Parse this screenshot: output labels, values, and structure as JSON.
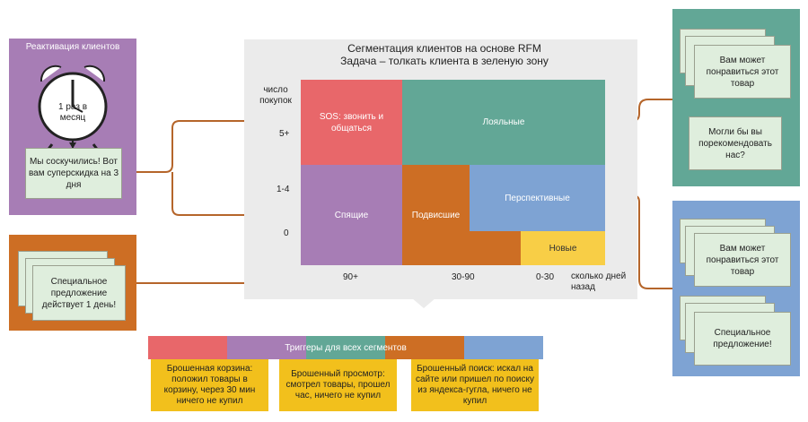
{
  "reactivation": {
    "title": "Реактивация клиентов",
    "clock_text": "1 раз в месяц",
    "message": "Мы соскучились! Вот вам суперскидка на 3 дня"
  },
  "special": {
    "message": "Специальное предложение действует 1 день!"
  },
  "matrix": {
    "title_line1": "Сегментация клиентов на основе RFM",
    "title_line2": "Задача – толкать клиента в зеленую зону",
    "y_title": "число покупок",
    "y_ticks": [
      "5+",
      "1-4",
      "0"
    ],
    "x_ticks": [
      "90+",
      "30-90",
      "0-30"
    ],
    "x_title": "сколько дней назад",
    "segments": {
      "sos": "SOS: звонить и общаться",
      "loyal": "Лояльные",
      "sleeping": "Спящие",
      "hanging": "Подвисшие",
      "promising": "Перспективные",
      "new": "Новые"
    }
  },
  "feedback": {
    "message1": "Вам может понравиться этот товар",
    "message2": "Могли бы вы порекомендовать нас?"
  },
  "promo": {
    "message1": "Вам может понравиться этот товар",
    "message2": "Специальное предложение!"
  },
  "triggers": {
    "title": "Триггеры для всех сегментов",
    "items": [
      "Брошенная корзина: положил товары в корзину, через 30 мин ничего не купил",
      "Брошенный просмотр: смотрел товары, прошел час, ничего не купил",
      "Брошенный поиск: искал на сайте или пришел по поиску из яндекса-гугла, ничего не купил"
    ]
  },
  "colors": {
    "sos": "#e8676a",
    "loyal": "#62a796",
    "sleeping": "#a77db5",
    "hanging": "#cd6e24",
    "promising": "#7ea3d3",
    "new": "#f8ce46",
    "trigger": "#f2c01c",
    "arrow": "#b5652a"
  }
}
